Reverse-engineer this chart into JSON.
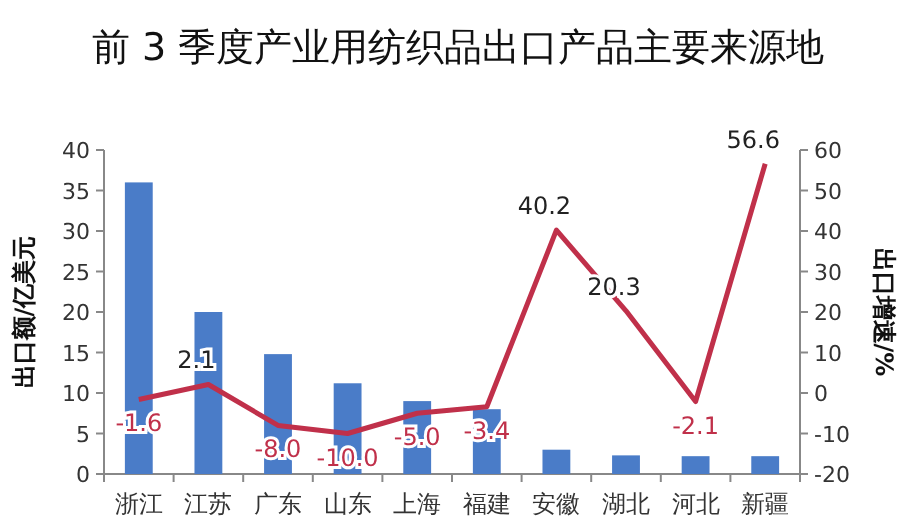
{
  "chart_data": {
    "type": "bar",
    "title": "前 3 季度产业用纺织品出口产品主要来源地",
    "ylabel": "出口额/亿美元",
    "y2label": "出口增速/%",
    "categories": [
      "浙江",
      "江苏",
      "广东",
      "山东",
      "上海",
      "福建",
      "安徽",
      "湖北",
      "河北",
      "新疆"
    ],
    "series": [
      {
        "color": "#4a7cc8",
        "values": [
          36,
          20,
          14.8,
          11.2,
          9,
          8,
          3,
          2.3,
          2.2,
          2.2
        ]
      },
      {
        "type": "line",
        "axis": "y2",
        "color": "#c0304a",
        "marker": "none",
        "values": [
          -1.6,
          2.1,
          -8.0,
          -10.0,
          -5.0,
          -3.4,
          40.2,
          20.3,
          -2.1,
          56.6
        ],
        "value_labels": [
          "-1.6",
          "2.1",
          "-8.0",
          "-10.0",
          "-5.0",
          "-3.4",
          "40.2",
          "20.3",
          "-2.1",
          "56.6"
        ]
      }
    ],
    "ylim": [
      0,
      40
    ],
    "yticks": [
      0,
      5,
      10,
      15,
      20,
      25,
      30,
      35,
      40
    ],
    "y2lim": [
      -20,
      60
    ],
    "y2ticks": [
      -20,
      -10,
      0,
      10,
      20,
      30,
      40,
      50,
      60
    ],
    "grid": false
  }
}
